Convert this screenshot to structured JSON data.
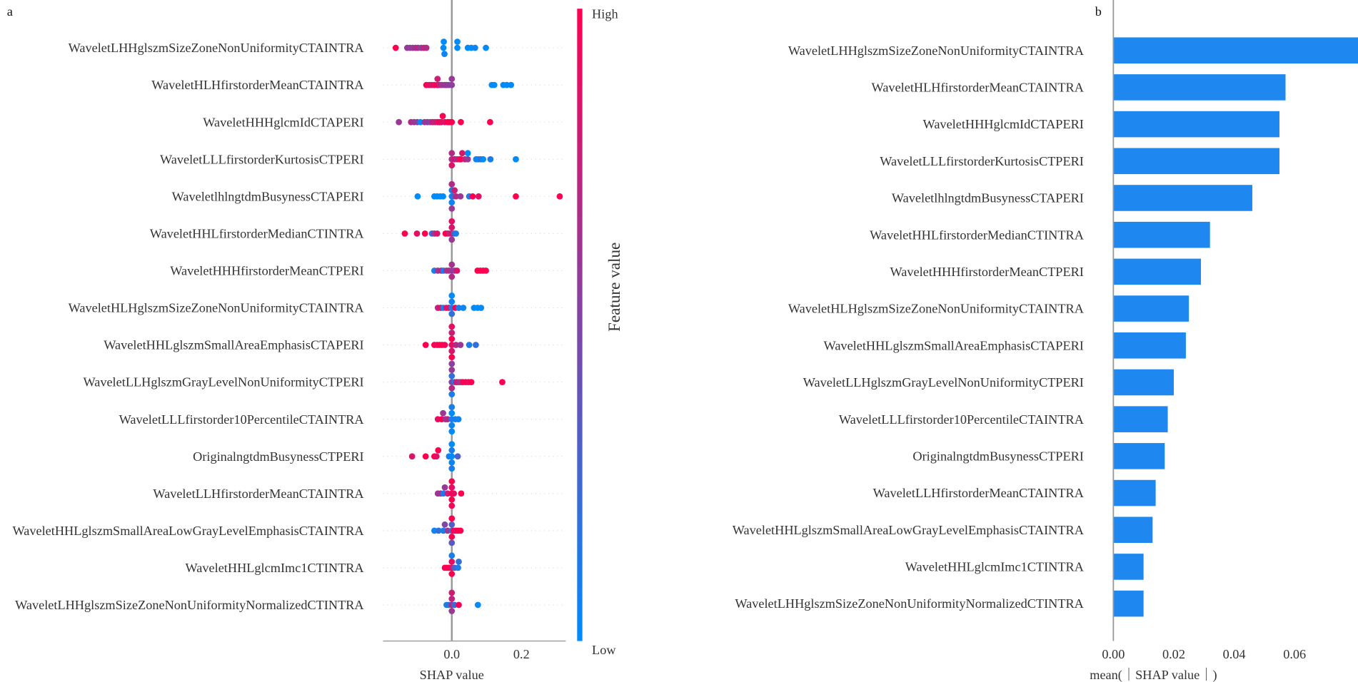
{
  "colors": {
    "low": "#008bfb",
    "high": "#ff0051",
    "axis": "#999999",
    "bar": "#1e88f0"
  },
  "chart_data": [
    {
      "type": "scatter",
      "subtype": "beeswarm",
      "panel_label": "a",
      "xlabel": "SHAP value",
      "xlim": [
        -0.2,
        0.33
      ],
      "xticks": [
        0.0,
        0.2
      ],
      "xtick_labels": [
        "0.0",
        "0.2"
      ],
      "colorbar": {
        "label": "Feature value",
        "high": "High",
        "low": "Low"
      },
      "features": [
        "WaveletLHHglszmSizeZoneNonUniformityCTAINTRA",
        "WaveletHLHfirstorderMeanCTAINTRA",
        "WaveletHHHglcmIdCTAPERI",
        "WaveletLLLfirstorderKurtosisCTPERI",
        "WaveletlhlngtdmBusynessCTAPERI",
        "WaveletHHLfirstorderMedianCTINTRA",
        "WaveletHHHfirstorderMeanCTPERI",
        "WaveletHLHglszmSizeZoneNonUniformityCTAINTRA",
        "WaveletHHLglszmSmallAreaEmphasisCTAPERI",
        "WaveletLLHglszmGrayLevelNonUniformityCTPERI",
        "WaveletLLLfirstorder10PercentileCTAINTRA",
        "OriginalngtdmBusynessCTPERI",
        "WaveletLLHfirstorderMeanCTAINTRA",
        "WaveletHHLglszmSmallAreaLowGrayLevelEmphasisCTAINTRA",
        "WaveletHHLglcmImc1CTINTRA",
        "WaveletLHHglszmSizeZoneNonUniformityNormalizedCTINTRA"
      ],
      "points": [
        [
          [
            -0.161,
            1
          ],
          [
            -0.128,
            0.6
          ],
          [
            -0.12,
            0.55
          ],
          [
            -0.112,
            0.6
          ],
          [
            -0.104,
            0.65
          ],
          [
            -0.097,
            0.7
          ],
          [
            -0.088,
            0.55
          ],
          [
            -0.08,
            0.75
          ],
          [
            -0.073,
            0.7
          ],
          [
            -0.024,
            0
          ],
          [
            -0.023,
            0
          ],
          [
            -0.021,
            0.05
          ],
          [
            0.016,
            0
          ],
          [
            0.016,
            0
          ],
          [
            0.046,
            0
          ],
          [
            0.056,
            0
          ],
          [
            0.067,
            0.05
          ],
          [
            0.098,
            0
          ]
        ],
        [
          [
            -0.073,
            1
          ],
          [
            -0.065,
            0.9
          ],
          [
            -0.058,
            0.85
          ],
          [
            -0.05,
            0.9
          ],
          [
            -0.041,
            1
          ],
          [
            -0.041,
            0.8
          ],
          [
            -0.035,
            0.75
          ],
          [
            -0.028,
            0.6
          ],
          [
            -0.02,
            0.6
          ],
          [
            -0.015,
            0.6
          ],
          [
            -0.008,
            0.55
          ],
          [
            0.0,
            0.55
          ],
          [
            0.0,
            0.6
          ],
          [
            0.115,
            0
          ],
          [
            0.122,
            0
          ],
          [
            0.148,
            0
          ],
          [
            0.158,
            0
          ],
          [
            0.17,
            0
          ]
        ],
        [
          [
            -0.152,
            0.6
          ],
          [
            -0.117,
            0.7
          ],
          [
            -0.108,
            0.6
          ],
          [
            -0.099,
            0.55
          ],
          [
            -0.09,
            0
          ],
          [
            -0.078,
            0.6
          ],
          [
            -0.07,
            0.6
          ],
          [
            -0.062,
            0.5
          ],
          [
            -0.055,
            0.8
          ],
          [
            -0.048,
            0.75
          ],
          [
            -0.041,
            0.85
          ],
          [
            -0.035,
            1
          ],
          [
            -0.03,
            0.9
          ],
          [
            -0.026,
            1
          ],
          [
            -0.02,
            0.85
          ],
          [
            -0.012,
            1
          ],
          [
            -0.006,
            1
          ],
          [
            0.0,
            1
          ],
          [
            0.026,
            1
          ],
          [
            0.11,
            1
          ]
        ],
        [
          [
            0.0,
            0.65
          ],
          [
            0.0,
            0.7
          ],
          [
            0.0,
            0.85
          ],
          [
            0.008,
            0.9
          ],
          [
            0.015,
            0.65
          ],
          [
            0.022,
            0.9
          ],
          [
            0.026,
            1
          ],
          [
            0.03,
            0.85
          ],
          [
            0.038,
            0.75
          ],
          [
            0.046,
            0.6
          ],
          [
            0.046,
            0
          ],
          [
            0.07,
            0.1
          ],
          [
            0.076,
            0
          ],
          [
            0.083,
            0.2
          ],
          [
            0.09,
            0
          ],
          [
            0.111,
            0.1
          ],
          [
            0.184,
            0
          ]
        ],
        [
          [
            -0.098,
            0
          ],
          [
            -0.05,
            0
          ],
          [
            -0.042,
            0
          ],
          [
            -0.033,
            0
          ],
          [
            -0.025,
            0
          ],
          [
            0.0,
            0
          ],
          [
            0.0,
            0.1
          ],
          [
            0.0,
            0.05
          ],
          [
            0.0,
            0.7
          ],
          [
            0.0,
            0.6
          ],
          [
            0.004,
            0.2
          ],
          [
            0.008,
            0.8
          ],
          [
            0.012,
            0.7
          ],
          [
            0.025,
            0.6
          ],
          [
            0.05,
            0.1
          ],
          [
            0.06,
            1
          ],
          [
            0.077,
            0.9
          ],
          [
            0.184,
            1
          ],
          [
            0.31,
            1
          ]
        ],
        [
          [
            -0.135,
            1
          ],
          [
            -0.1,
            0.9
          ],
          [
            -0.077,
            1
          ],
          [
            -0.057,
            0.2
          ],
          [
            -0.05,
            0.6
          ],
          [
            -0.042,
            0.85
          ],
          [
            -0.018,
            1
          ],
          [
            -0.012,
            1
          ],
          [
            -0.006,
            0.7
          ],
          [
            0.0,
            0.9
          ],
          [
            0.0,
            0.85
          ],
          [
            0.0,
            0.6
          ],
          [
            0.0,
            0.9
          ],
          [
            0.006,
            0.4
          ],
          [
            0.012,
            0.1
          ]
        ],
        [
          [
            -0.05,
            0.1
          ],
          [
            -0.04,
            0.6
          ],
          [
            -0.03,
            0.75
          ],
          [
            -0.024,
            0.1
          ],
          [
            -0.015,
            0.6
          ],
          [
            -0.008,
            0.7
          ],
          [
            0.0,
            0.6
          ],
          [
            0.0,
            0.65
          ],
          [
            0.0,
            0.7
          ],
          [
            0.008,
            0.55
          ],
          [
            0.015,
            0.85
          ],
          [
            0.074,
            1
          ],
          [
            0.082,
            1
          ],
          [
            0.09,
            1
          ],
          [
            0.098,
            1
          ]
        ],
        [
          [
            -0.04,
            0.75
          ],
          [
            -0.032,
            0.85
          ],
          [
            -0.024,
            0.1
          ],
          [
            -0.015,
            0.9
          ],
          [
            -0.008,
            0.85
          ],
          [
            0.0,
            0.1
          ],
          [
            0.0,
            0.05
          ],
          [
            0.0,
            0.2
          ],
          [
            0.0,
            0.0
          ],
          [
            0.01,
            1
          ],
          [
            0.02,
            0.1
          ],
          [
            0.033,
            0.05
          ],
          [
            0.064,
            0
          ],
          [
            0.074,
            0
          ],
          [
            0.084,
            0
          ]
        ],
        [
          [
            -0.075,
            1
          ],
          [
            -0.05,
            1
          ],
          [
            -0.042,
            0.9
          ],
          [
            -0.035,
            1
          ],
          [
            -0.028,
            1
          ],
          [
            -0.02,
            0.95
          ],
          [
            0.0,
            0.9
          ],
          [
            0.0,
            1
          ],
          [
            0.0,
            0.85
          ],
          [
            0.0,
            0.8
          ],
          [
            0.0,
            1
          ],
          [
            0.0,
            0.9
          ],
          [
            0.012,
            0.7
          ],
          [
            0.025,
            0.6
          ],
          [
            0.05,
            0.1
          ],
          [
            0.069,
            0.2
          ]
        ],
        [
          [
            0.0,
            0.5
          ],
          [
            0.0,
            0.2
          ],
          [
            0.0,
            0.7
          ],
          [
            0.0,
            0.6
          ],
          [
            0.0,
            0.1
          ],
          [
            0.0,
            0.55
          ],
          [
            0.008,
            0.15
          ],
          [
            0.014,
            0.9
          ],
          [
            0.02,
            0.7
          ],
          [
            0.026,
            0.6
          ],
          [
            0.032,
            0.95
          ],
          [
            0.04,
            1
          ],
          [
            0.048,
            0.9
          ],
          [
            0.056,
            1
          ],
          [
            0.145,
            1
          ]
        ],
        [
          [
            -0.04,
            0.9
          ],
          [
            -0.029,
            1
          ],
          [
            -0.025,
            0.6
          ],
          [
            -0.018,
            0.6
          ],
          [
            -0.012,
            0.7
          ],
          [
            0.0,
            0.1
          ],
          [
            0.0,
            0.0
          ],
          [
            0.0,
            0.05
          ],
          [
            0.0,
            0.1
          ],
          [
            0.0,
            0.0
          ],
          [
            0.01,
            0.1
          ],
          [
            0.019,
            0.05
          ]
        ],
        [
          [
            -0.114,
            0.85
          ],
          [
            -0.075,
            1
          ],
          [
            -0.05,
            1
          ],
          [
            -0.044,
            0.9
          ],
          [
            -0.039,
            1
          ],
          [
            -0.008,
            0.1
          ],
          [
            0.0,
            0.0
          ],
          [
            0.0,
            0.1
          ],
          [
            0.0,
            0.05
          ],
          [
            0.0,
            0.0
          ],
          [
            0.0,
            0.1
          ],
          [
            0.017,
            0.3
          ]
        ],
        [
          [
            -0.04,
            0.6
          ],
          [
            -0.032,
            0.65
          ],
          [
            -0.024,
            0.1
          ],
          [
            -0.02,
            0.6
          ],
          [
            -0.012,
            0.8
          ],
          [
            0.0,
            1
          ],
          [
            0.0,
            0.9
          ],
          [
            0.0,
            1
          ],
          [
            0.0,
            1
          ],
          [
            0.0,
            0.95
          ],
          [
            0.006,
            0.9
          ],
          [
            0.027,
            1
          ]
        ],
        [
          [
            -0.05,
            0.05
          ],
          [
            -0.038,
            0.2
          ],
          [
            -0.024,
            0.1
          ],
          [
            -0.02,
            0.5
          ],
          [
            -0.012,
            0.6
          ],
          [
            0.0,
            0.3
          ],
          [
            0.0,
            0.3
          ],
          [
            0.0,
            1
          ],
          [
            0.0,
            1
          ],
          [
            0.006,
            1
          ],
          [
            0.012,
            0.9
          ],
          [
            0.018,
            1
          ],
          [
            0.025,
            1
          ],
          [
            0.0,
            0.35
          ]
        ],
        [
          [
            -0.02,
            1
          ],
          [
            -0.014,
            1
          ],
          [
            -0.008,
            1
          ],
          [
            0.0,
            0.85
          ],
          [
            0.0,
            0.9
          ],
          [
            0.0,
            1
          ],
          [
            0.0,
            0.1
          ],
          [
            0.008,
            0.3
          ],
          [
            0.018,
            0.1
          ],
          [
            0.02,
            0.2
          ]
        ],
        [
          [
            -0.015,
            0.1
          ],
          [
            -0.008,
            0.15
          ],
          [
            0.0,
            0.7
          ],
          [
            0.0,
            0.75
          ],
          [
            0.0,
            0.6
          ],
          [
            0.0,
            0.8
          ],
          [
            0.008,
            0.2
          ],
          [
            0.02,
            1
          ],
          [
            0.075,
            0
          ]
        ]
      ]
    },
    {
      "type": "bar",
      "orientation": "horizontal",
      "panel_label": "b",
      "xlabel": "mean(｜SHAP value｜)",
      "xlim": [
        0,
        0.0815
      ],
      "xticks": [
        0.0,
        0.02,
        0.04,
        0.06
      ],
      "xtick_labels": [
        "0.00",
        "0.02",
        "0.04",
        "0.06"
      ],
      "categories": [
        "WaveletLHHglszmSizeZoneNonUniformityCTAINTRA",
        "WaveletHLHfirstorderMeanCTAINTRA",
        "WaveletHHHglcmIdCTAPERI",
        "WaveletLLLfirstorderKurtosisCTPERI",
        "WaveletlhlngtdmBusynessCTAPERI",
        "WaveletHHLfirstorderMedianCTINTRA",
        "WaveletHHHfirstorderMeanCTPERI",
        "WaveletHLHglszmSizeZoneNonUniformityCTAINTRA",
        "WaveletHHLglszmSmallAreaEmphasisCTAPERI",
        "WaveletLLHglszmGrayLevelNonUniformityCTPERI",
        "WaveletLLLfirstorder10PercentileCTAINTRA",
        "OriginalngtdmBusynessCTPERI",
        "WaveletLLHfirstorderMeanCTAINTRA",
        "WaveletHHLglszmSmallAreaLowGrayLevelEmphasisCTAINTRA",
        "WaveletHHLglcmImc1CTINTRA",
        "WaveletLHHglszmSizeZoneNonUniformityNormalizedCTINTRA"
      ],
      "values": [
        0.081,
        0.057,
        0.055,
        0.055,
        0.046,
        0.032,
        0.029,
        0.025,
        0.024,
        0.02,
        0.018,
        0.017,
        0.014,
        0.013,
        0.01,
        0.01
      ]
    }
  ]
}
